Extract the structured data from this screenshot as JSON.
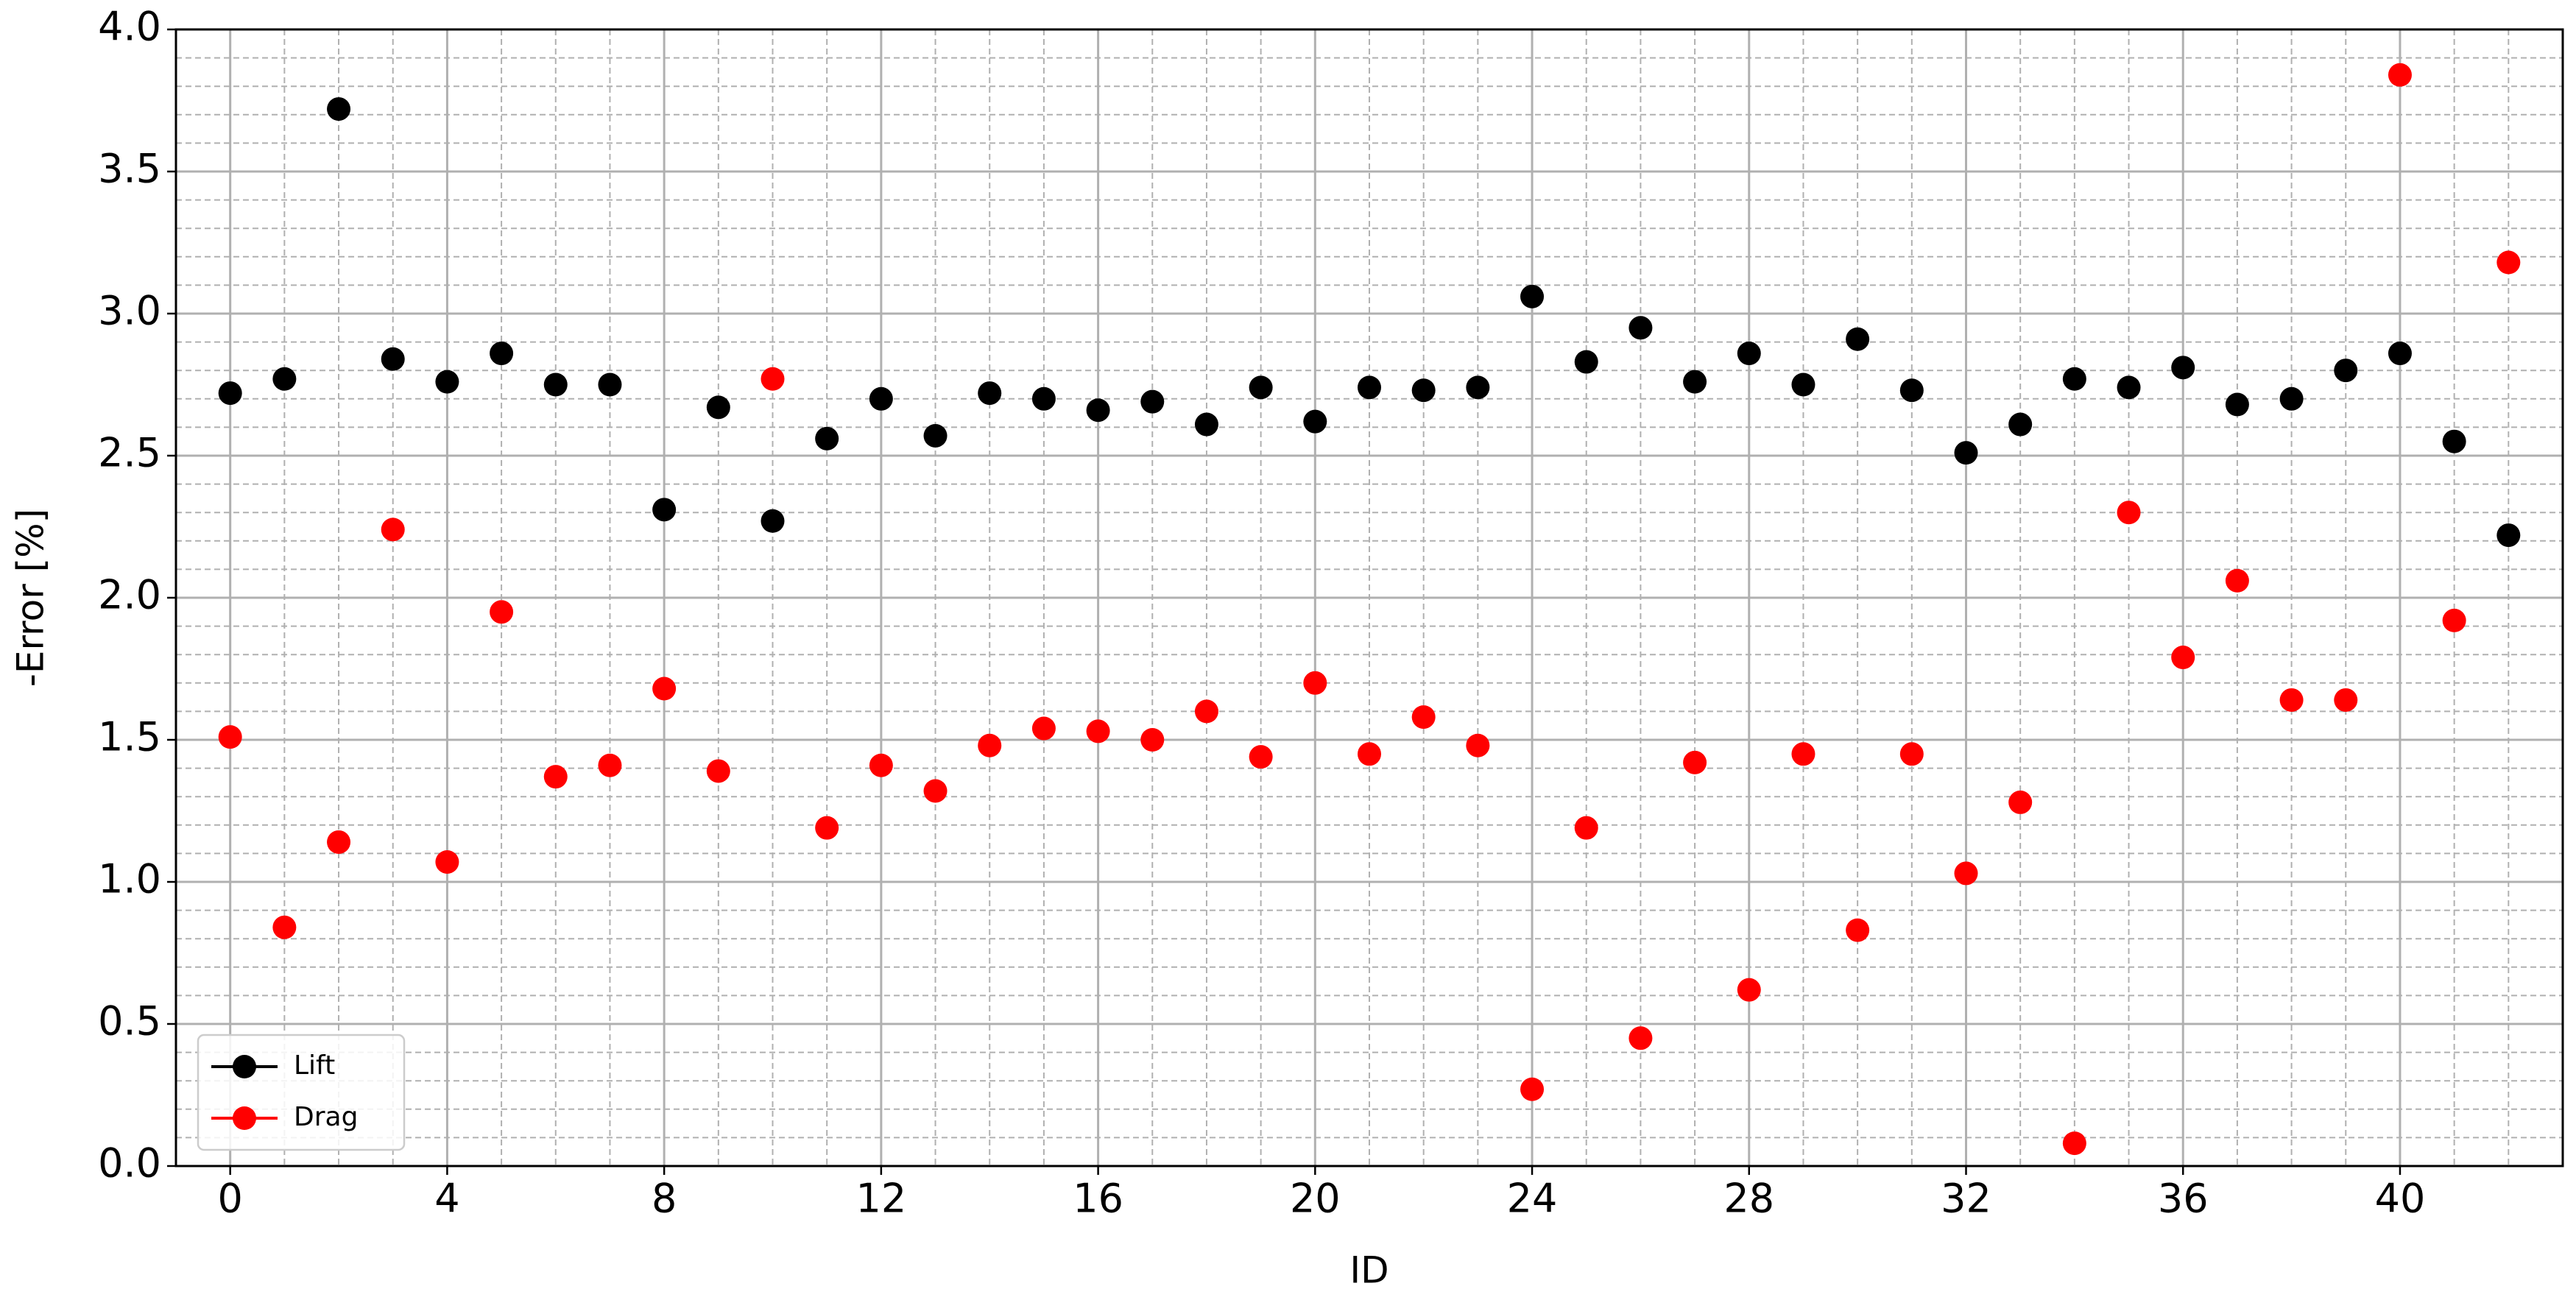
{
  "chart_data": {
    "type": "scatter",
    "x_label": "ID",
    "y_label": "-Error [%]",
    "x": [
      0,
      1,
      2,
      3,
      4,
      5,
      6,
      7,
      8,
      9,
      10,
      11,
      12,
      13,
      14,
      15,
      16,
      17,
      18,
      19,
      20,
      21,
      22,
      23,
      24,
      25,
      26,
      27,
      28,
      29,
      30,
      31,
      32,
      33,
      34,
      35,
      36,
      37,
      38,
      39,
      40,
      41,
      42
    ],
    "series": [
      {
        "name": "Lift",
        "color": "#000000",
        "values": [
          2.72,
          2.77,
          3.72,
          2.84,
          2.76,
          2.86,
          2.75,
          2.75,
          2.31,
          2.67,
          2.27,
          2.56,
          2.7,
          2.57,
          2.72,
          2.7,
          2.66,
          2.69,
          2.61,
          2.74,
          2.62,
          2.74,
          2.73,
          2.74,
          3.06,
          2.83,
          2.95,
          2.76,
          2.86,
          2.75,
          2.91,
          2.73,
          2.51,
          2.61,
          2.77,
          2.74,
          2.81,
          2.68,
          2.7,
          2.8,
          2.86,
          2.55,
          2.22
        ]
      },
      {
        "name": "Drag",
        "color": "#ff0000",
        "values": [
          1.51,
          0.84,
          1.14,
          2.24,
          1.07,
          1.95,
          1.37,
          1.41,
          1.68,
          1.39,
          2.77,
          1.19,
          1.41,
          1.32,
          1.48,
          1.54,
          1.53,
          1.5,
          1.6,
          1.44,
          1.7,
          1.45,
          1.58,
          1.48,
          0.27,
          1.19,
          0.45,
          1.42,
          0.62,
          1.45,
          0.83,
          1.45,
          1.03,
          1.28,
          0.08,
          2.3,
          1.79,
          2.06,
          1.64,
          1.64,
          3.84,
          1.92,
          3.18
        ]
      }
    ],
    "xlim": [
      -1,
      43
    ],
    "xticks": [
      0,
      4,
      8,
      12,
      16,
      20,
      24,
      28,
      32,
      36,
      40
    ],
    "ylim": [
      0,
      4
    ],
    "yticks": [
      {
        "value": 0,
        "label": "0.0"
      },
      0.5,
      {
        "value": 1,
        "label": "1.0"
      },
      1.5,
      {
        "value": 2,
        "label": "2.0"
      },
      2.5,
      {
        "value": 3,
        "label": "3.0"
      },
      3.5,
      {
        "value": 4,
        "label": "4.0"
      }
    ],
    "grid": true,
    "legend": "lower left"
  }
}
